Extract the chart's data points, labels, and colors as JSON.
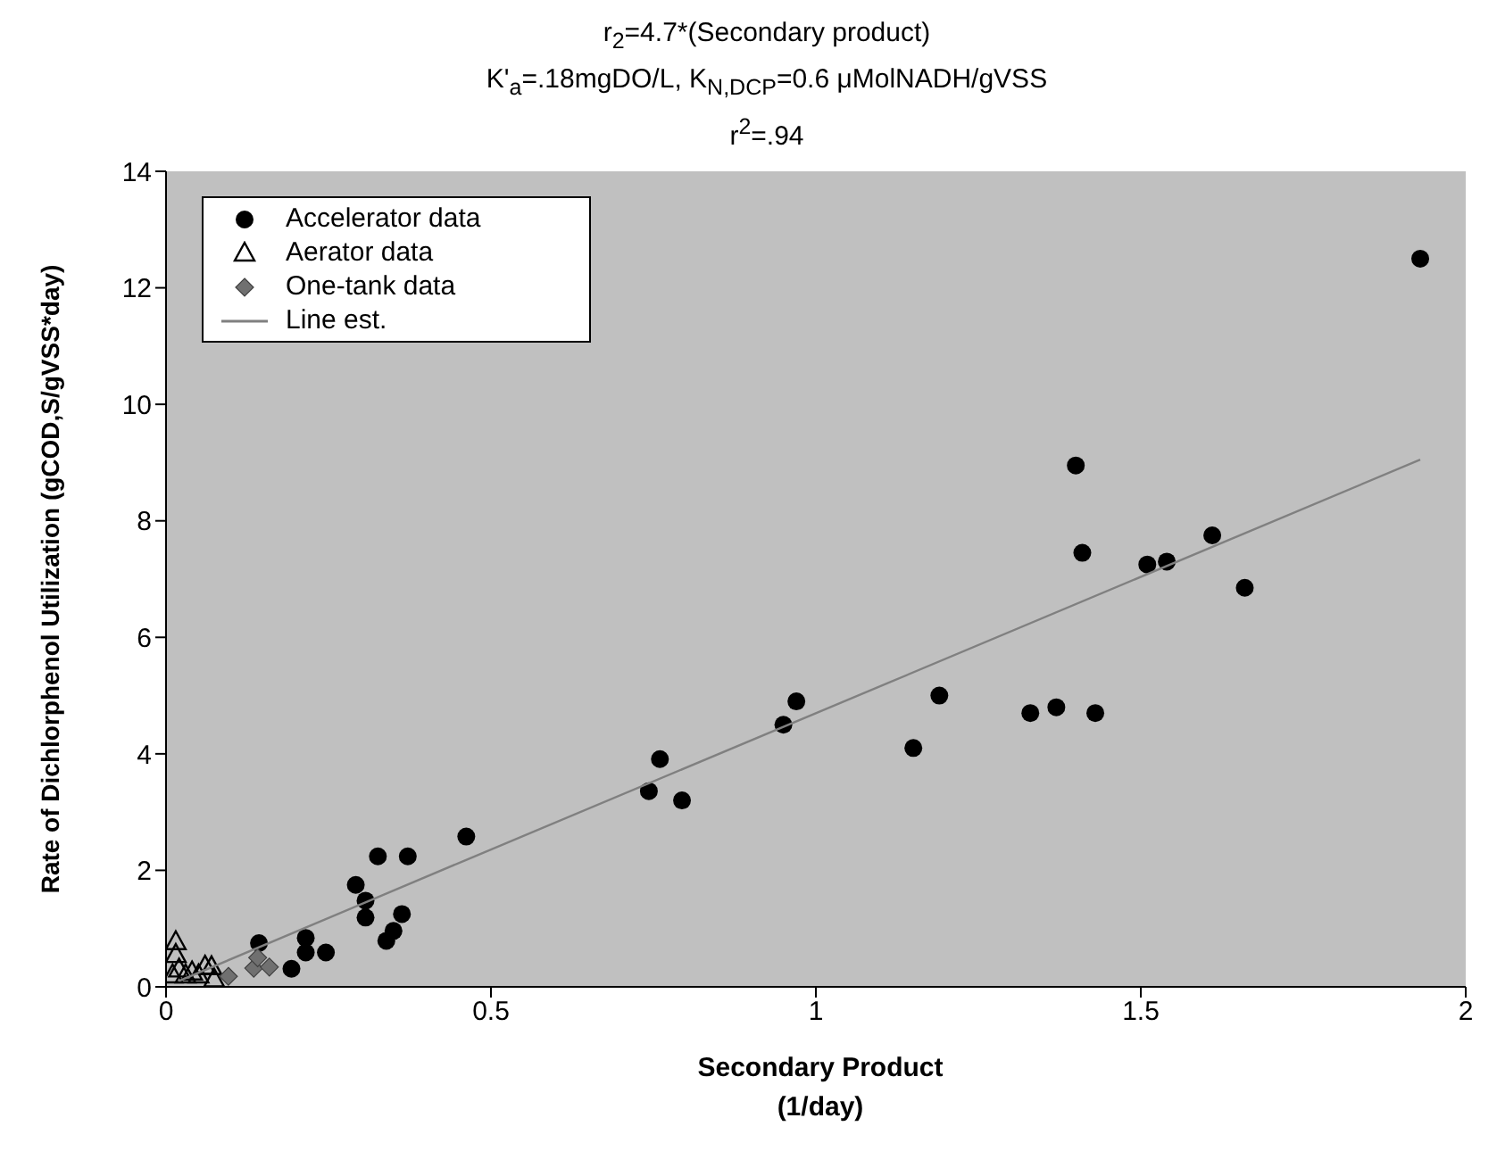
{
  "chart_data": {
    "type": "scatter",
    "title": "r$_{2}$=4.7*(Secondary product)",
    "subtitle": "K'$_{a}$=.18mgDO/L, K$_{N,DCP}$=0.6 μMolNADH/gVSS",
    "annotations": [
      "r$^{2}$=.94"
    ],
    "xlabel": "Secondary Product\n(1/day)",
    "ylabel": "Rate of Dichlorphenol Utilization (gCOD,S/gVSS*day)",
    "xlim": [
      0,
      2
    ],
    "xticks": [
      0,
      0.5,
      1,
      1.5,
      2
    ],
    "ylim": [
      0,
      14
    ],
    "yticks": [
      0,
      2,
      4,
      6,
      8,
      10,
      12,
      14
    ],
    "grid": false,
    "legend": "top left",
    "series": [
      {
        "name": "Accelerator data",
        "color": "#000000",
        "marker": "circle",
        "x": [
          0.143,
          0.215,
          0.193,
          0.215,
          0.246,
          0.292,
          0.307,
          0.307,
          0.326,
          0.372,
          0.339,
          0.35,
          0.363,
          0.462,
          0.743,
          0.76,
          0.794,
          0.95,
          0.97,
          1.15,
          1.19,
          1.33,
          1.37,
          1.43,
          1.4,
          1.41,
          1.51,
          1.54,
          1.61,
          1.66,
          1.93
        ],
        "values": [
          0.75,
          0.84,
          0.31,
          0.59,
          0.59,
          1.75,
          1.48,
          1.19,
          2.24,
          2.24,
          0.79,
          0.96,
          1.25,
          2.58,
          3.36,
          3.91,
          3.2,
          4.5,
          4.9,
          4.1,
          5.0,
          4.7,
          4.8,
          4.7,
          8.95,
          7.45,
          7.25,
          7.3,
          7.75,
          6.85,
          12.5
        ]
      },
      {
        "name": "Aerator data",
        "color": "#000000",
        "marker": "triangle",
        "x": [
          0.015,
          0.015,
          0.02,
          0.01,
          0.03,
          0.04,
          0.05,
          0.06,
          0.07,
          0.074
        ],
        "values": [
          0.77,
          0.55,
          0.3,
          0.2,
          0.2,
          0.25,
          0.2,
          0.35,
          0.34,
          0.13
        ]
      },
      {
        "name": "One-tank data",
        "color": "#707070",
        "marker": "diamond",
        "x": [
          0.096,
          0.135,
          0.141,
          0.159
        ],
        "values": [
          0.18,
          0.32,
          0.5,
          0.34
        ]
      },
      {
        "name": "Line est.",
        "type": "line",
        "color": "#808080",
        "marker": "none",
        "x": [
          0.02,
          0.46,
          1.93
        ],
        "values": [
          0.1,
          2.17,
          9.05
        ]
      }
    ]
  }
}
